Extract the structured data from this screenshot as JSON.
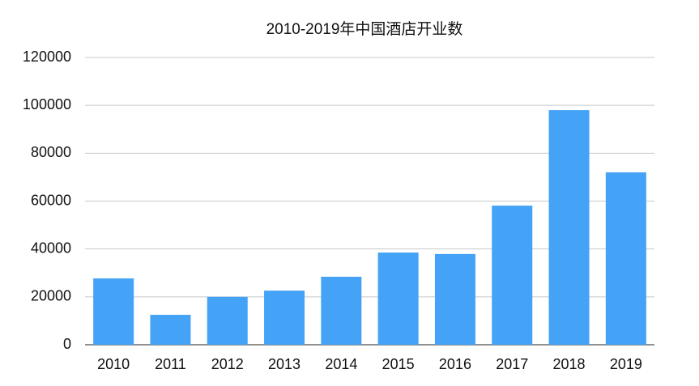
{
  "chart_data": {
    "type": "bar",
    "title": "2010-2019年中国酒店开业数",
    "categories": [
      "2010",
      "2011",
      "2012",
      "2013",
      "2014",
      "2015",
      "2016",
      "2017",
      "2018",
      "2019"
    ],
    "values": [
      27700,
      12500,
      20000,
      22600,
      28400,
      38500,
      37900,
      58100,
      98000,
      72000
    ],
    "color": "#44a3f6",
    "ylim": [
      0,
      120000
    ],
    "yticks": [
      0,
      20000,
      40000,
      60000,
      80000,
      100000,
      120000
    ],
    "grid": true
  }
}
